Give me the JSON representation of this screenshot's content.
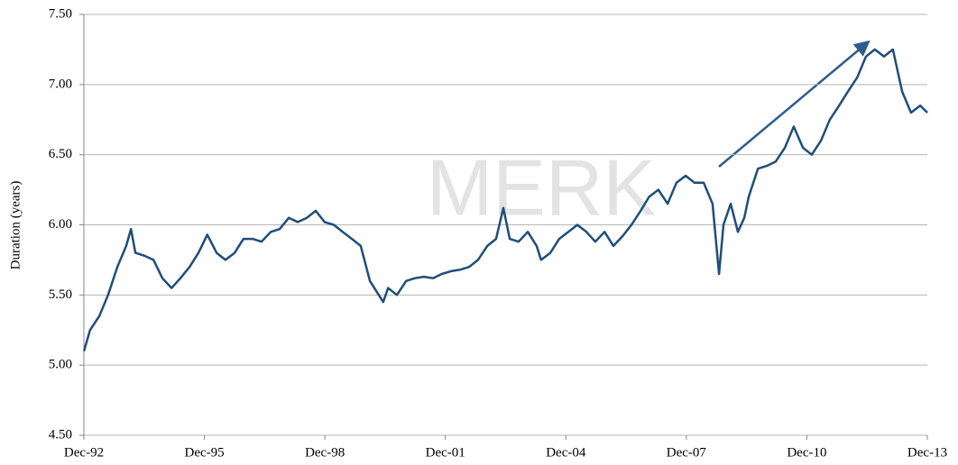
{
  "chart_data": {
    "type": "line",
    "y_label": "Duration (years)",
    "watermark": "MERK",
    "xlim": [
      1992.917,
      2013.917
    ],
    "xticks": [
      {
        "value": 1992.917,
        "label": "Dec-92"
      },
      {
        "value": 1995.917,
        "label": "Dec-95"
      },
      {
        "value": 1998.917,
        "label": "Dec-98"
      },
      {
        "value": 2001.917,
        "label": "Dec-01"
      },
      {
        "value": 2004.917,
        "label": "Dec-04"
      },
      {
        "value": 2007.917,
        "label": "Dec-07"
      },
      {
        "value": 2010.917,
        "label": "Dec-10"
      },
      {
        "value": 2013.917,
        "label": "Dec-13"
      }
    ],
    "ylim": [
      4.5,
      7.5
    ],
    "yticks": [
      {
        "value": 4.5,
        "label": "4.50"
      },
      {
        "value": 5,
        "label": "5.00"
      },
      {
        "value": 5.5,
        "label": "5.50"
      },
      {
        "value": 6,
        "label": "6.00"
      },
      {
        "value": 6.5,
        "label": "6.50"
      },
      {
        "value": 7,
        "label": "7.00"
      },
      {
        "value": 7.5,
        "label": "7.50"
      }
    ],
    "grid": true,
    "x": [
      1992.92,
      1993.07,
      1993.3,
      1993.52,
      1993.75,
      1993.97,
      1994.09,
      1994.2,
      1994.42,
      1994.65,
      1994.87,
      1995.1,
      1995.32,
      1995.55,
      1995.77,
      1995.99,
      1996.22,
      1996.44,
      1996.67,
      1996.89,
      1997.12,
      1997.34,
      1997.57,
      1997.79,
      1998.02,
      1998.24,
      1998.47,
      1998.69,
      1998.91,
      1999.14,
      1999.36,
      1999.59,
      1999.81,
      2000.04,
      2000.26,
      2000.37,
      2000.49,
      2000.71,
      2000.94,
      2001.16,
      2001.38,
      2001.61,
      2001.83,
      2002.06,
      2002.28,
      2002.51,
      2002.73,
      2002.96,
      2003.18,
      2003.36,
      2003.52,
      2003.74,
      2003.97,
      2004.19,
      2004.3,
      2004.53,
      2004.75,
      2004.98,
      2005.2,
      2005.43,
      2005.65,
      2005.88,
      2006.1,
      2006.33,
      2006.55,
      2006.78,
      2006.99,
      2007.22,
      2007.45,
      2007.67,
      2007.9,
      2008.12,
      2008.35,
      2008.57,
      2008.73,
      2008.84,
      2009.02,
      2009.2,
      2009.36,
      2009.47,
      2009.7,
      2009.92,
      2010.14,
      2010.37,
      2010.59,
      2010.82,
      2011.04,
      2011.27,
      2011.49,
      2011.72,
      2011.94,
      2012.17,
      2012.39,
      2012.61,
      2012.84,
      2013.06,
      2013.29,
      2013.51,
      2013.74,
      2013.92
    ],
    "series": [
      {
        "color": "#1f4e79",
        "values": [
          5.1,
          5.25,
          5.35,
          5.5,
          5.7,
          5.85,
          5.97,
          5.8,
          5.78,
          5.75,
          5.62,
          5.55,
          5.62,
          5.7,
          5.8,
          5.93,
          5.8,
          5.75,
          5.8,
          5.9,
          5.9,
          5.88,
          5.95,
          5.97,
          6.05,
          6.02,
          6.05,
          6.1,
          6.02,
          6.0,
          5.95,
          5.9,
          5.85,
          5.6,
          5.5,
          5.45,
          5.55,
          5.5,
          5.6,
          5.62,
          5.63,
          5.62,
          5.65,
          5.67,
          5.68,
          5.7,
          5.75,
          5.85,
          5.9,
          6.12,
          5.9,
          5.88,
          5.95,
          5.85,
          5.75,
          5.8,
          5.9,
          5.95,
          6.0,
          5.95,
          5.88,
          5.95,
          5.85,
          5.92,
          6.0,
          6.1,
          6.2,
          6.25,
          6.15,
          6.3,
          6.35,
          6.3,
          6.3,
          6.15,
          5.65,
          6.0,
          6.15,
          5.95,
          6.05,
          6.2,
          6.4,
          6.42,
          6.45,
          6.55,
          6.7,
          6.55,
          6.5,
          6.6,
          6.75,
          6.85,
          6.95,
          7.05,
          7.2,
          7.25,
          7.2,
          7.25,
          6.95,
          6.8,
          6.85,
          6.8
        ]
      }
    ]
  }
}
